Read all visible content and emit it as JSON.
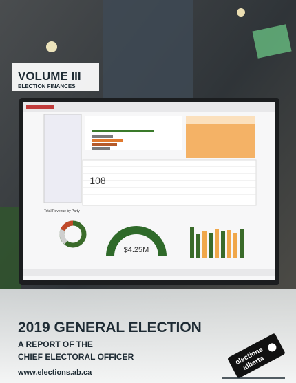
{
  "volume": {
    "title": "VOLUME III",
    "subtitle": "ELECTION FINANCES"
  },
  "screen": {
    "big_number": "108",
    "donut_title": "Total Revenue by Party",
    "gauge_value": "$4.25M"
  },
  "cover": {
    "title": "2019 GENERAL ELECTION",
    "subtitle_line1": "A REPORT OF THE",
    "subtitle_line2": "CHIEF ELECTORAL OFFICER",
    "url": "www.elections.ab.ca"
  },
  "logo": {
    "line1": "elections",
    "line2": "alberta"
  }
}
